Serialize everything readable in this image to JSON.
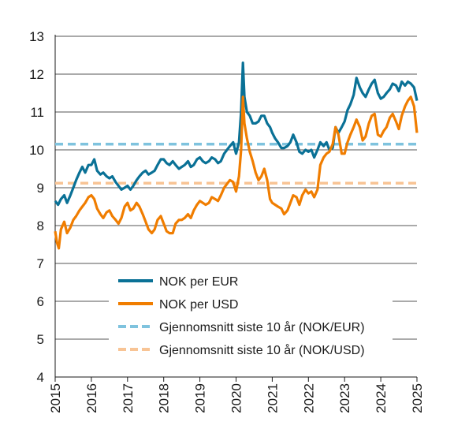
{
  "chart_data": {
    "type": "line",
    "title": "",
    "xlabel": "",
    "ylabel": "",
    "xlim": [
      2015,
      2025
    ],
    "ylim": [
      4,
      13
    ],
    "grid": "horizontal",
    "legend_position": "lower-center",
    "x_ticks": [
      "2015",
      "2016",
      "2017",
      "2018",
      "2019",
      "2020",
      "2021",
      "2022",
      "2023",
      "2024",
      "2025"
    ],
    "y_ticks": [
      "4",
      "5",
      "6",
      "7",
      "8",
      "9",
      "10",
      "11",
      "12",
      "13"
    ],
    "series": [
      {
        "name": "NOK per EUR",
        "color": "#0a7196",
        "style": "solid",
        "points": [
          [
            2015.0,
            8.65
          ],
          [
            2015.08,
            8.55
          ],
          [
            2015.16,
            8.7
          ],
          [
            2015.25,
            8.8
          ],
          [
            2015.33,
            8.6
          ],
          [
            2015.42,
            8.8
          ],
          [
            2015.5,
            9.0
          ],
          [
            2015.58,
            9.2
          ],
          [
            2015.67,
            9.4
          ],
          [
            2015.75,
            9.55
          ],
          [
            2015.83,
            9.4
          ],
          [
            2015.92,
            9.6
          ],
          [
            2016.0,
            9.6
          ],
          [
            2016.08,
            9.75
          ],
          [
            2016.16,
            9.45
          ],
          [
            2016.25,
            9.35
          ],
          [
            2016.33,
            9.4
          ],
          [
            2016.42,
            9.3
          ],
          [
            2016.5,
            9.25
          ],
          [
            2016.58,
            9.3
          ],
          [
            2016.67,
            9.15
          ],
          [
            2016.75,
            9.05
          ],
          [
            2016.83,
            8.95
          ],
          [
            2016.92,
            9.0
          ],
          [
            2017.0,
            9.05
          ],
          [
            2017.08,
            8.95
          ],
          [
            2017.16,
            9.05
          ],
          [
            2017.25,
            9.2
          ],
          [
            2017.33,
            9.3
          ],
          [
            2017.42,
            9.4
          ],
          [
            2017.5,
            9.45
          ],
          [
            2017.58,
            9.35
          ],
          [
            2017.67,
            9.4
          ],
          [
            2017.75,
            9.45
          ],
          [
            2017.83,
            9.6
          ],
          [
            2017.92,
            9.75
          ],
          [
            2018.0,
            9.75
          ],
          [
            2018.08,
            9.65
          ],
          [
            2018.16,
            9.6
          ],
          [
            2018.25,
            9.7
          ],
          [
            2018.33,
            9.6
          ],
          [
            2018.42,
            9.5
          ],
          [
            2018.5,
            9.55
          ],
          [
            2018.58,
            9.6
          ],
          [
            2018.67,
            9.7
          ],
          [
            2018.75,
            9.55
          ],
          [
            2018.83,
            9.6
          ],
          [
            2018.92,
            9.75
          ],
          [
            2019.0,
            9.8
          ],
          [
            2019.08,
            9.7
          ],
          [
            2019.16,
            9.65
          ],
          [
            2019.25,
            9.7
          ],
          [
            2019.33,
            9.8
          ],
          [
            2019.42,
            9.75
          ],
          [
            2019.5,
            9.65
          ],
          [
            2019.58,
            9.7
          ],
          [
            2019.67,
            9.9
          ],
          [
            2019.75,
            10.0
          ],
          [
            2019.83,
            10.1
          ],
          [
            2019.92,
            10.2
          ],
          [
            2020.0,
            9.9
          ],
          [
            2020.08,
            10.2
          ],
          [
            2020.14,
            11.0
          ],
          [
            2020.19,
            12.3
          ],
          [
            2020.23,
            11.4
          ],
          [
            2020.3,
            11.0
          ],
          [
            2020.38,
            10.9
          ],
          [
            2020.46,
            10.7
          ],
          [
            2020.54,
            10.7
          ],
          [
            2020.62,
            10.75
          ],
          [
            2020.7,
            10.9
          ],
          [
            2020.78,
            10.9
          ],
          [
            2020.86,
            10.7
          ],
          [
            2020.94,
            10.6
          ],
          [
            2021.0,
            10.45
          ],
          [
            2021.08,
            10.3
          ],
          [
            2021.16,
            10.2
          ],
          [
            2021.25,
            10.05
          ],
          [
            2021.33,
            10.05
          ],
          [
            2021.42,
            10.1
          ],
          [
            2021.5,
            10.2
          ],
          [
            2021.58,
            10.4
          ],
          [
            2021.67,
            10.2
          ],
          [
            2021.75,
            9.95
          ],
          [
            2021.83,
            9.9
          ],
          [
            2021.92,
            10.0
          ],
          [
            2022.0,
            9.95
          ],
          [
            2022.08,
            10.0
          ],
          [
            2022.16,
            9.8
          ],
          [
            2022.25,
            10.0
          ],
          [
            2022.33,
            10.2
          ],
          [
            2022.42,
            10.1
          ],
          [
            2022.5,
            10.2
          ],
          [
            2022.58,
            10.0
          ],
          [
            2022.67,
            10.05
          ],
          [
            2022.75,
            10.6
          ],
          [
            2022.83,
            10.45
          ],
          [
            2022.92,
            10.6
          ],
          [
            2023.0,
            10.75
          ],
          [
            2023.08,
            11.05
          ],
          [
            2023.16,
            11.2
          ],
          [
            2023.25,
            11.45
          ],
          [
            2023.33,
            11.9
          ],
          [
            2023.42,
            11.65
          ],
          [
            2023.5,
            11.5
          ],
          [
            2023.58,
            11.4
          ],
          [
            2023.67,
            11.6
          ],
          [
            2023.75,
            11.75
          ],
          [
            2023.83,
            11.85
          ],
          [
            2023.92,
            11.5
          ],
          [
            2024.0,
            11.35
          ],
          [
            2024.08,
            11.4
          ],
          [
            2024.16,
            11.5
          ],
          [
            2024.25,
            11.6
          ],
          [
            2024.33,
            11.75
          ],
          [
            2024.42,
            11.7
          ],
          [
            2024.5,
            11.55
          ],
          [
            2024.58,
            11.8
          ],
          [
            2024.67,
            11.7
          ],
          [
            2024.75,
            11.8
          ],
          [
            2024.83,
            11.75
          ],
          [
            2024.92,
            11.65
          ],
          [
            2025.0,
            11.3
          ]
        ]
      },
      {
        "name": "NOK per USD",
        "color": "#f07d00",
        "style": "solid",
        "points": [
          [
            2015.0,
            7.85
          ],
          [
            2015.05,
            7.55
          ],
          [
            2015.1,
            7.4
          ],
          [
            2015.16,
            7.9
          ],
          [
            2015.25,
            8.1
          ],
          [
            2015.33,
            7.8
          ],
          [
            2015.42,
            7.95
          ],
          [
            2015.5,
            8.15
          ],
          [
            2015.58,
            8.25
          ],
          [
            2015.67,
            8.4
          ],
          [
            2015.75,
            8.5
          ],
          [
            2015.83,
            8.6
          ],
          [
            2015.92,
            8.75
          ],
          [
            2016.0,
            8.8
          ],
          [
            2016.08,
            8.7
          ],
          [
            2016.16,
            8.45
          ],
          [
            2016.25,
            8.3
          ],
          [
            2016.33,
            8.2
          ],
          [
            2016.42,
            8.35
          ],
          [
            2016.5,
            8.4
          ],
          [
            2016.58,
            8.25
          ],
          [
            2016.67,
            8.15
          ],
          [
            2016.75,
            8.05
          ],
          [
            2016.83,
            8.2
          ],
          [
            2016.92,
            8.5
          ],
          [
            2017.0,
            8.6
          ],
          [
            2017.08,
            8.4
          ],
          [
            2017.16,
            8.45
          ],
          [
            2017.25,
            8.6
          ],
          [
            2017.33,
            8.5
          ],
          [
            2017.42,
            8.3
          ],
          [
            2017.5,
            8.1
          ],
          [
            2017.58,
            7.9
          ],
          [
            2017.67,
            7.8
          ],
          [
            2017.75,
            7.9
          ],
          [
            2017.83,
            8.15
          ],
          [
            2017.92,
            8.25
          ],
          [
            2018.0,
            8.05
          ],
          [
            2018.08,
            7.85
          ],
          [
            2018.16,
            7.8
          ],
          [
            2018.25,
            7.8
          ],
          [
            2018.33,
            8.05
          ],
          [
            2018.42,
            8.15
          ],
          [
            2018.5,
            8.15
          ],
          [
            2018.58,
            8.2
          ],
          [
            2018.67,
            8.3
          ],
          [
            2018.75,
            8.2
          ],
          [
            2018.83,
            8.4
          ],
          [
            2018.92,
            8.55
          ],
          [
            2019.0,
            8.65
          ],
          [
            2019.08,
            8.6
          ],
          [
            2019.16,
            8.55
          ],
          [
            2019.25,
            8.6
          ],
          [
            2019.33,
            8.75
          ],
          [
            2019.42,
            8.7
          ],
          [
            2019.5,
            8.65
          ],
          [
            2019.58,
            8.8
          ],
          [
            2019.67,
            9.0
          ],
          [
            2019.75,
            9.1
          ],
          [
            2019.83,
            9.2
          ],
          [
            2019.92,
            9.15
          ],
          [
            2020.0,
            8.9
          ],
          [
            2020.08,
            9.3
          ],
          [
            2020.14,
            10.0
          ],
          [
            2020.19,
            11.4
          ],
          [
            2020.23,
            10.7
          ],
          [
            2020.3,
            10.3
          ],
          [
            2020.38,
            9.95
          ],
          [
            2020.46,
            9.7
          ],
          [
            2020.54,
            9.4
          ],
          [
            2020.62,
            9.2
          ],
          [
            2020.7,
            9.3
          ],
          [
            2020.78,
            9.5
          ],
          [
            2020.86,
            9.2
          ],
          [
            2020.94,
            8.7
          ],
          [
            2021.0,
            8.6
          ],
          [
            2021.08,
            8.55
          ],
          [
            2021.16,
            8.5
          ],
          [
            2021.25,
            8.45
          ],
          [
            2021.33,
            8.3
          ],
          [
            2021.42,
            8.4
          ],
          [
            2021.5,
            8.6
          ],
          [
            2021.58,
            8.8
          ],
          [
            2021.67,
            8.75
          ],
          [
            2021.75,
            8.55
          ],
          [
            2021.83,
            8.8
          ],
          [
            2021.92,
            8.95
          ],
          [
            2022.0,
            8.85
          ],
          [
            2022.08,
            8.9
          ],
          [
            2022.16,
            8.75
          ],
          [
            2022.25,
            8.95
          ],
          [
            2022.33,
            9.6
          ],
          [
            2022.42,
            9.8
          ],
          [
            2022.5,
            9.9
          ],
          [
            2022.58,
            9.95
          ],
          [
            2022.67,
            10.15
          ],
          [
            2022.75,
            10.6
          ],
          [
            2022.83,
            10.4
          ],
          [
            2022.92,
            9.9
          ],
          [
            2023.0,
            9.9
          ],
          [
            2023.08,
            10.2
          ],
          [
            2023.16,
            10.4
          ],
          [
            2023.25,
            10.6
          ],
          [
            2023.33,
            10.8
          ],
          [
            2023.42,
            10.6
          ],
          [
            2023.5,
            10.25
          ],
          [
            2023.58,
            10.35
          ],
          [
            2023.67,
            10.7
          ],
          [
            2023.75,
            10.9
          ],
          [
            2023.83,
            10.95
          ],
          [
            2023.92,
            10.4
          ],
          [
            2024.0,
            10.35
          ],
          [
            2024.08,
            10.5
          ],
          [
            2024.16,
            10.6
          ],
          [
            2024.25,
            10.85
          ],
          [
            2024.33,
            10.95
          ],
          [
            2024.42,
            10.75
          ],
          [
            2024.5,
            10.55
          ],
          [
            2024.58,
            10.9
          ],
          [
            2024.67,
            11.15
          ],
          [
            2024.75,
            11.3
          ],
          [
            2024.83,
            11.4
          ],
          [
            2024.92,
            11.15
          ],
          [
            2025.0,
            10.45
          ]
        ]
      },
      {
        "name": "Gjennomsnitt siste 10 år (NOK/EUR)",
        "color": "#7fc3de",
        "style": "dashed",
        "points": [
          [
            2015.0,
            10.15
          ],
          [
            2025.0,
            10.15
          ]
        ]
      },
      {
        "name": "Gjennomsnitt siste 10 år (NOK/USD)",
        "color": "#f8c495",
        "style": "dashed",
        "points": [
          [
            2015.0,
            9.12
          ],
          [
            2025.0,
            9.12
          ]
        ]
      }
    ]
  }
}
